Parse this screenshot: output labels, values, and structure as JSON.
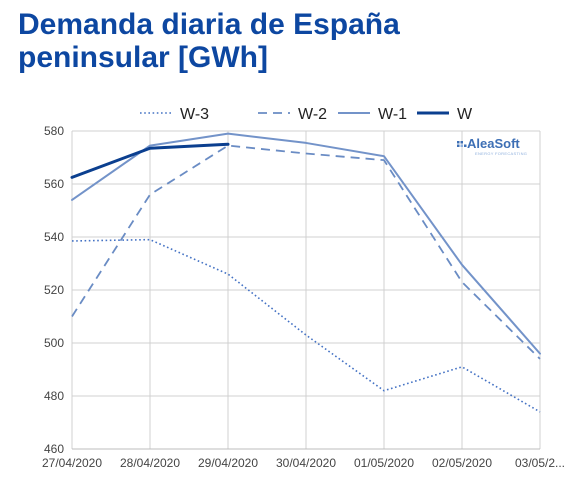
{
  "chart_data": {
    "type": "line",
    "title": "Demanda diaria de España peninsular [GWh]",
    "xlabel": "",
    "ylabel": "",
    "categories": [
      "27/04/2020",
      "28/04/2020",
      "29/04/2020",
      "30/04/2020",
      "01/05/2020",
      "02/05/2020",
      "03/05/2..."
    ],
    "ylim": [
      460,
      580
    ],
    "yticks": [
      460,
      480,
      500,
      520,
      540,
      560,
      580
    ],
    "grid": true,
    "legend_position": "top-center",
    "series": [
      {
        "name": "W-3",
        "style": "dotted",
        "color": "#4472c4",
        "values": [
          538.5,
          539,
          526,
          503,
          482,
          491,
          474
        ]
      },
      {
        "name": "W-2",
        "style": "dashed",
        "color": "#6a8cc4",
        "values": [
          510,
          556,
          574.5,
          571.5,
          569,
          523,
          494
        ]
      },
      {
        "name": "W-1",
        "style": "solid",
        "color": "#7393c9",
        "values": [
          554,
          574.5,
          579,
          575.5,
          570.5,
          529.5,
          496
        ]
      },
      {
        "name": "W",
        "style": "solid-bold",
        "color": "#0b3f8f",
        "values": [
          562.5,
          573.5,
          575,
          null,
          null,
          null,
          null
        ]
      }
    ]
  },
  "logo": {
    "name": "AleaSoft",
    "tagline": "ENERGY FORECASTING"
  }
}
